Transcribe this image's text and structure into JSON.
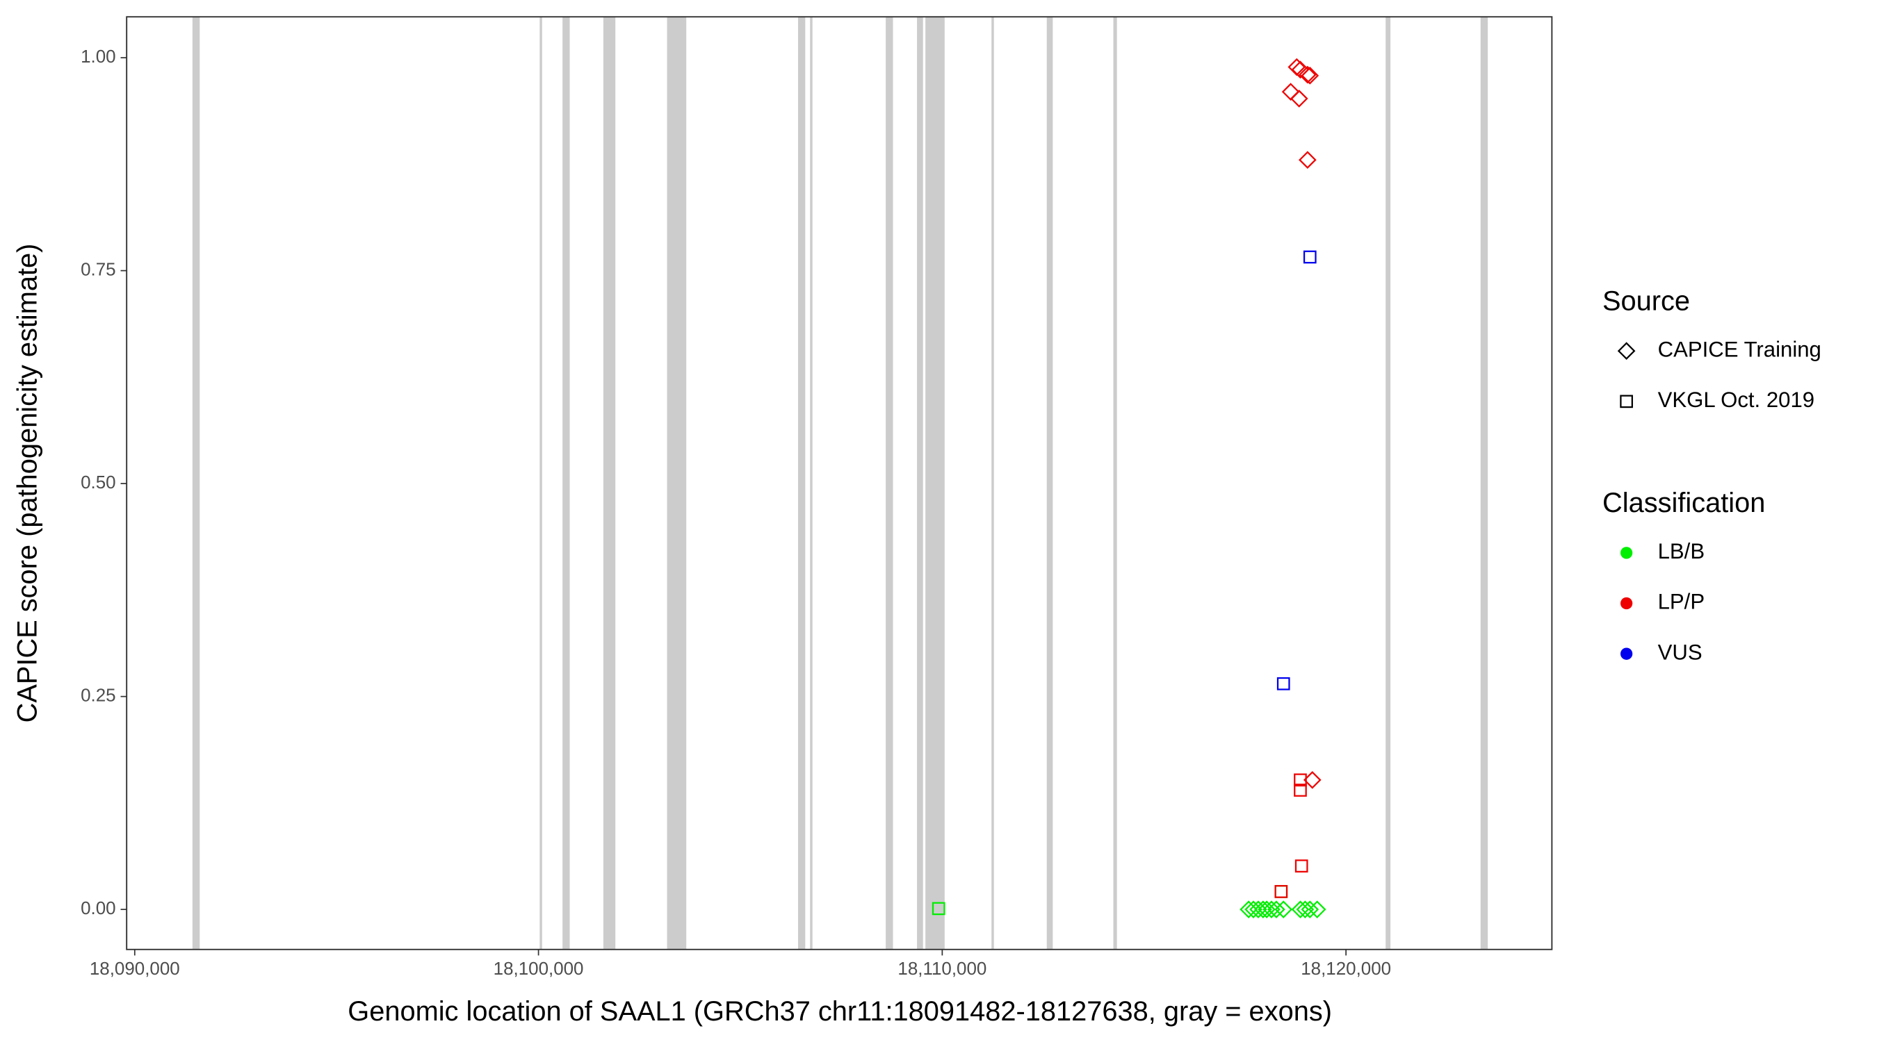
{
  "chart_data": {
    "type": "scatter",
    "x_label": "Genomic location of SAAL1 (GRCh37 chr11:18091482-18127638, gray = exons)",
    "y_label": "CAPICE score (pathogenicity estimate)",
    "xlim": [
      18089800,
      18125100
    ],
    "ylim": [
      -0.047,
      1.048
    ],
    "xticks": [
      {
        "value": 18090000,
        "label": "18,090,000"
      },
      {
        "value": 18100000,
        "label": "18,100,000"
      },
      {
        "value": 18110000,
        "label": "18,110,000"
      },
      {
        "value": 18120000,
        "label": "18,120,000"
      }
    ],
    "yticks": [
      {
        "value": 0,
        "label": "0.00"
      },
      {
        "value": 0.25,
        "label": "0.25"
      },
      {
        "value": 0.5,
        "label": "0.50"
      },
      {
        "value": 0.75,
        "label": "0.75"
      },
      {
        "value": 1,
        "label": "1.00"
      }
    ],
    "exon_color": "#cccccc",
    "exons": [
      [
        18091430,
        18091610
      ],
      [
        18100030,
        18100090
      ],
      [
        18100595,
        18100774
      ],
      [
        18101607,
        18101905
      ],
      [
        18103185,
        18103661
      ],
      [
        18106429,
        18106607
      ],
      [
        18106726,
        18106786
      ],
      [
        18108601,
        18108780
      ],
      [
        18109375,
        18109524
      ],
      [
        18109583,
        18110060
      ],
      [
        18111220,
        18111280
      ],
      [
        18112589,
        18112738
      ],
      [
        18114238,
        18114327
      ],
      [
        18120982,
        18121101
      ],
      [
        18123333,
        18123512
      ]
    ],
    "shape_legend": {
      "title": "Source",
      "entries": [
        {
          "label": "CAPICE Training",
          "shape": "diamond"
        },
        {
          "label": "VKGL Oct. 2019",
          "shape": "square"
        }
      ]
    },
    "color_legend": {
      "title": "Classification",
      "entries": [
        {
          "label": "LB/B",
          "color": "#00ee00"
        },
        {
          "label": "LP/P",
          "color": "#ee0000"
        },
        {
          "label": "VUS",
          "color": "#0000ee"
        }
      ]
    },
    "series": [
      {
        "shape": "diamond",
        "color": "#00ee00",
        "x": [
          18117589,
          18117708,
          18117827,
          18117946,
          18118036,
          18118155,
          18118274,
          18118452,
          18118869,
          18118988,
          18119107,
          18119286
        ],
        "values": [
          0,
          0,
          0,
          0,
          0,
          0,
          0,
          0,
          0,
          0,
          0,
          0
        ]
      },
      {
        "shape": "square",
        "color": "#00ee00",
        "x": [
          18109911,
          18118393
        ],
        "values": [
          0.001,
          0.021
        ]
      },
      {
        "shape": "diamond",
        "color": "#ee0000",
        "x": [
          18118780,
          18118869,
          18119048,
          18119107,
          18118631,
          18118839,
          18119048,
          18119167
        ],
        "values": [
          0.989,
          0.986,
          0.98,
          0.979,
          0.96,
          0.952,
          0.88,
          0.152
        ]
      },
      {
        "shape": "square",
        "color": "#ee0000",
        "x": [
          18118869,
          18118869,
          18118899,
          18118393
        ],
        "values": [
          0.152,
          0.14,
          0.051,
          0.021
        ]
      },
      {
        "shape": "square",
        "color": "#0000ee",
        "x": [
          18119107,
          18118452
        ],
        "values": [
          0.766,
          0.265
        ]
      }
    ]
  }
}
